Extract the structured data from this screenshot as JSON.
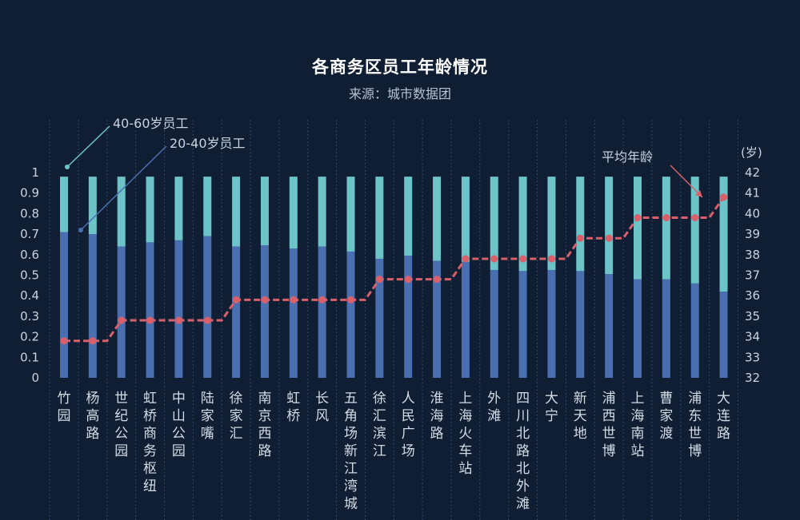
{
  "chart_data": {
    "type": "bar",
    "title": "各商务区员工年龄情况",
    "subtitle": "来源：城市数据团",
    "categories": [
      "竹园",
      "杨高路",
      "世纪公园",
      "虹桥商务枢纽",
      "中山公园",
      "陆家嘴",
      "徐家汇",
      "南京西路",
      "虹桥",
      "长风",
      "五角场新江湾城",
      "徐汇滨江",
      "人民广场",
      "淮海路",
      "上海火车站",
      "外滩",
      "四川北路北外滩",
      "大宁",
      "新天地",
      "浦西世博",
      "上海南站",
      "曹家渡",
      "浦东世博",
      "大连路"
    ],
    "series": [
      {
        "name": "20-40岁员工",
        "type": "bar",
        "axis": "left",
        "values": [
          0.71,
          0.7,
          0.64,
          0.66,
          0.67,
          0.69,
          0.64,
          0.645,
          0.63,
          0.64,
          0.615,
          0.58,
          0.595,
          0.57,
          0.565,
          0.525,
          0.52,
          0.525,
          0.52,
          0.505,
          0.48,
          0.48,
          0.46,
          0.42
        ]
      },
      {
        "name": "40-60岁员工",
        "type": "bar",
        "axis": "left",
        "values": [
          0.27,
          0.28,
          0.34,
          0.32,
          0.31,
          0.29,
          0.34,
          0.335,
          0.35,
          0.34,
          0.365,
          0.4,
          0.385,
          0.41,
          0.415,
          0.455,
          0.46,
          0.455,
          0.46,
          0.475,
          0.5,
          0.5,
          0.52,
          0.56
        ]
      },
      {
        "name": "平均年龄",
        "type": "line",
        "axis": "right",
        "values": [
          33.8,
          33.8,
          34.8,
          34.8,
          34.8,
          34.8,
          35.8,
          35.8,
          35.8,
          35.8,
          35.8,
          36.8,
          36.8,
          36.8,
          37.8,
          37.8,
          37.8,
          37.8,
          38.8,
          38.8,
          39.8,
          39.8,
          39.8,
          40.8
        ]
      }
    ],
    "y_left": {
      "min": 0,
      "max": 1,
      "ticks": [
        "0",
        "0.1",
        "0.2",
        "0.3",
        "0.4",
        "0.5",
        "0.6",
        "0.7",
        "0.8",
        "0.9",
        "1"
      ]
    },
    "y_right": {
      "min": 32,
      "max": 42,
      "unit_label": "(岁)",
      "ticks": [
        "32",
        "33",
        "34",
        "35",
        "36",
        "37",
        "38",
        "39",
        "40",
        "41",
        "42"
      ]
    },
    "annotations": [
      "40-60岁员工",
      "20-40岁员工",
      "平均年龄"
    ],
    "colors": {
      "bar_lower": "#4a6fb0",
      "bar_upper": "#6cc3c8",
      "line": "#d9606a",
      "background": "#0f1e33"
    }
  }
}
